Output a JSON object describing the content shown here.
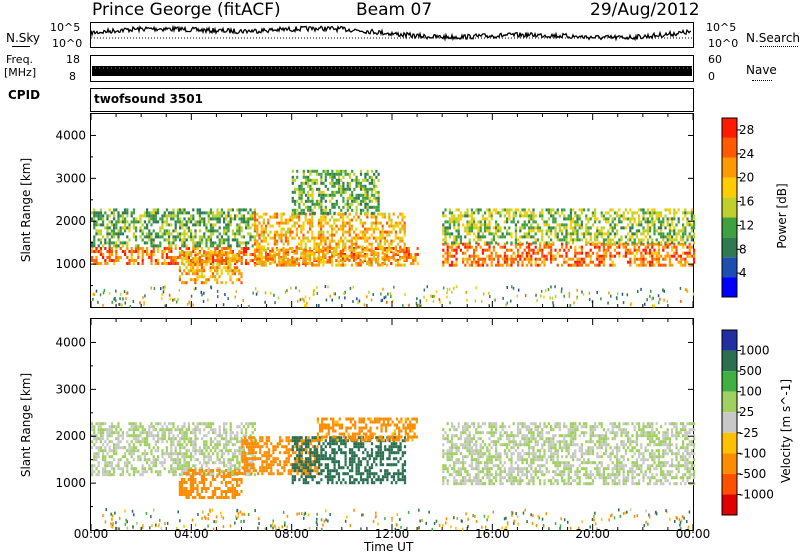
{
  "header": {
    "station": "Prince George (fitACF)",
    "beam": "Beam 07",
    "date": "29/Aug/2012"
  },
  "noise_panel": {
    "left_label": "N.Sky",
    "left_ticks": [
      "10^5",
      "10^0"
    ],
    "right_ticks": [
      "10^5",
      "10^0"
    ],
    "right_label": "N.Search"
  },
  "freq_panel": {
    "left_label_line1": "Freq.",
    "left_label_line2": "[MHz]",
    "left_ticks": [
      "18",
      "8"
    ],
    "right_ticks": [
      "60",
      "0"
    ],
    "right_label": "Nave"
  },
  "cpid_panel": {
    "label": "CPID",
    "value": "twofsound 3501"
  },
  "colors": {
    "power_scale": [
      "#0000ff",
      "#1d4fb0",
      "#2f7a52",
      "#3fa040",
      "#bfd02a",
      "#ffcc00",
      "#ff9900",
      "#ff5a00",
      "#ff1a00"
    ],
    "velocity_scale": [
      "#2030a0",
      "#2a7050",
      "#40b040",
      "#a0d060",
      "#c8c8c8",
      "#ffc000",
      "#ff8c00",
      "#ff5000",
      "#e00000"
    ]
  },
  "chart_data": [
    {
      "type": "heatmap",
      "title": "",
      "xlabel": "",
      "ylabel": "Slant Range [km]",
      "x_range": [
        "00:00",
        "24:00"
      ],
      "ylim": [
        0,
        4500
      ],
      "y_ticks": [
        1000,
        2000,
        3000,
        4000
      ],
      "colorbar_label": "Power [dB]",
      "colorbar_ticks": [
        4,
        8,
        12,
        16,
        20,
        24,
        28
      ],
      "colorbar_range": [
        0,
        30
      ],
      "echo_regions": [
        {
          "t_start": 0.0,
          "t_end": 13.0,
          "range_low": 1000,
          "range_high": 1400,
          "value": 24
        },
        {
          "t_start": 0.0,
          "t_end": 6.5,
          "range_low": 1400,
          "range_high": 2300,
          "value": 12
        },
        {
          "t_start": 3.5,
          "t_end": 6.0,
          "range_low": 600,
          "range_high": 1300,
          "value": 20
        },
        {
          "t_start": 6.5,
          "t_end": 12.5,
          "range_low": 1000,
          "range_high": 2200,
          "value": 20
        },
        {
          "t_start": 8.0,
          "t_end": 11.5,
          "range_low": 2200,
          "range_high": 3200,
          "value": 12
        },
        {
          "t_start": 14.0,
          "t_end": 24.0,
          "range_low": 1000,
          "range_high": 1500,
          "value": 24
        },
        {
          "t_start": 14.0,
          "t_end": 24.0,
          "range_low": 1500,
          "range_high": 2300,
          "value": 14
        }
      ]
    },
    {
      "type": "heatmap",
      "title": "",
      "xlabel": "Time UT",
      "ylabel": "Slant Range [km]",
      "x_range": [
        "00:00",
        "24:00"
      ],
      "x_ticks": [
        "00:00",
        "04:00",
        "08:00",
        "12:00",
        "16:00",
        "20:00",
        "00:00"
      ],
      "ylim": [
        0,
        4500
      ],
      "y_ticks": [
        1000,
        2000,
        3000,
        4000
      ],
      "colorbar_label": "Velocity [m s^-1]",
      "colorbar_ticks": [
        1000,
        500,
        100,
        25,
        -25,
        -100,
        -500,
        -1000
      ],
      "echo_regions": [
        {
          "t_start": 0.0,
          "t_end": 6.5,
          "range_low": 1200,
          "range_high": 2300,
          "value": 0
        },
        {
          "t_start": 3.5,
          "t_end": 6.0,
          "range_low": 700,
          "range_high": 1300,
          "value": -300
        },
        {
          "t_start": 6.0,
          "t_end": 9.0,
          "range_low": 1200,
          "range_high": 2000,
          "value": -300
        },
        {
          "t_start": 8.0,
          "t_end": 12.5,
          "range_low": 1000,
          "range_high": 2000,
          "value": 200
        },
        {
          "t_start": 9.0,
          "t_end": 13.0,
          "range_low": 1900,
          "range_high": 2400,
          "value": -150
        },
        {
          "t_start": 14.0,
          "t_end": 24.0,
          "range_low": 1000,
          "range_high": 2300,
          "value": 0
        }
      ]
    }
  ]
}
